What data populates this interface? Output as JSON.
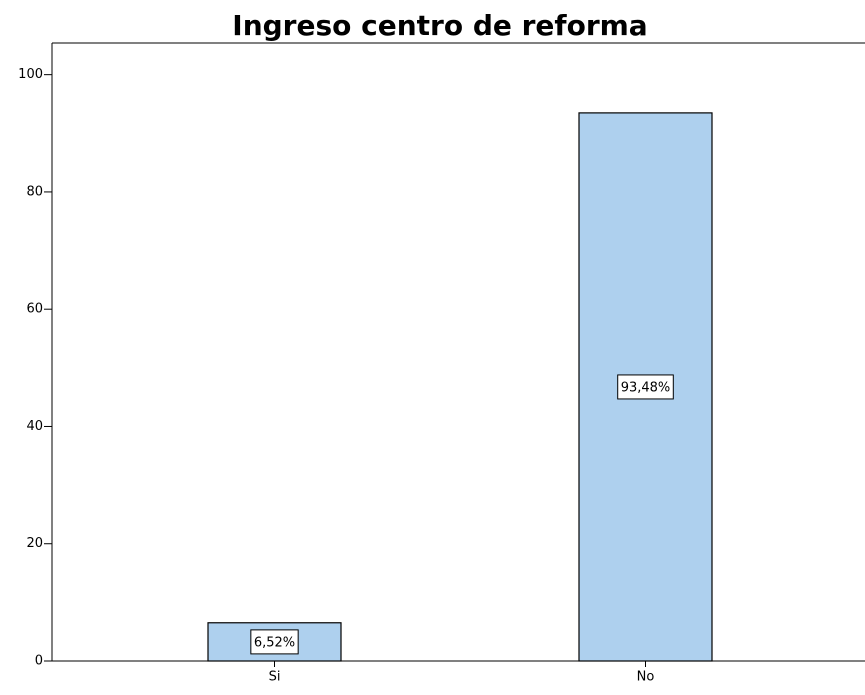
{
  "chart_data": {
    "type": "bar",
    "title": "Ingreso centro de reforma",
    "categories": [
      "Si",
      "No"
    ],
    "values": [
      6.52,
      93.48
    ],
    "value_labels": [
      "6,52%",
      "93,48%"
    ],
    "color": "#aed0ee",
    "ylim": [
      0,
      105.4
    ],
    "yticks": [
      0,
      20,
      40,
      60,
      80,
      100
    ],
    "grid": false
  }
}
